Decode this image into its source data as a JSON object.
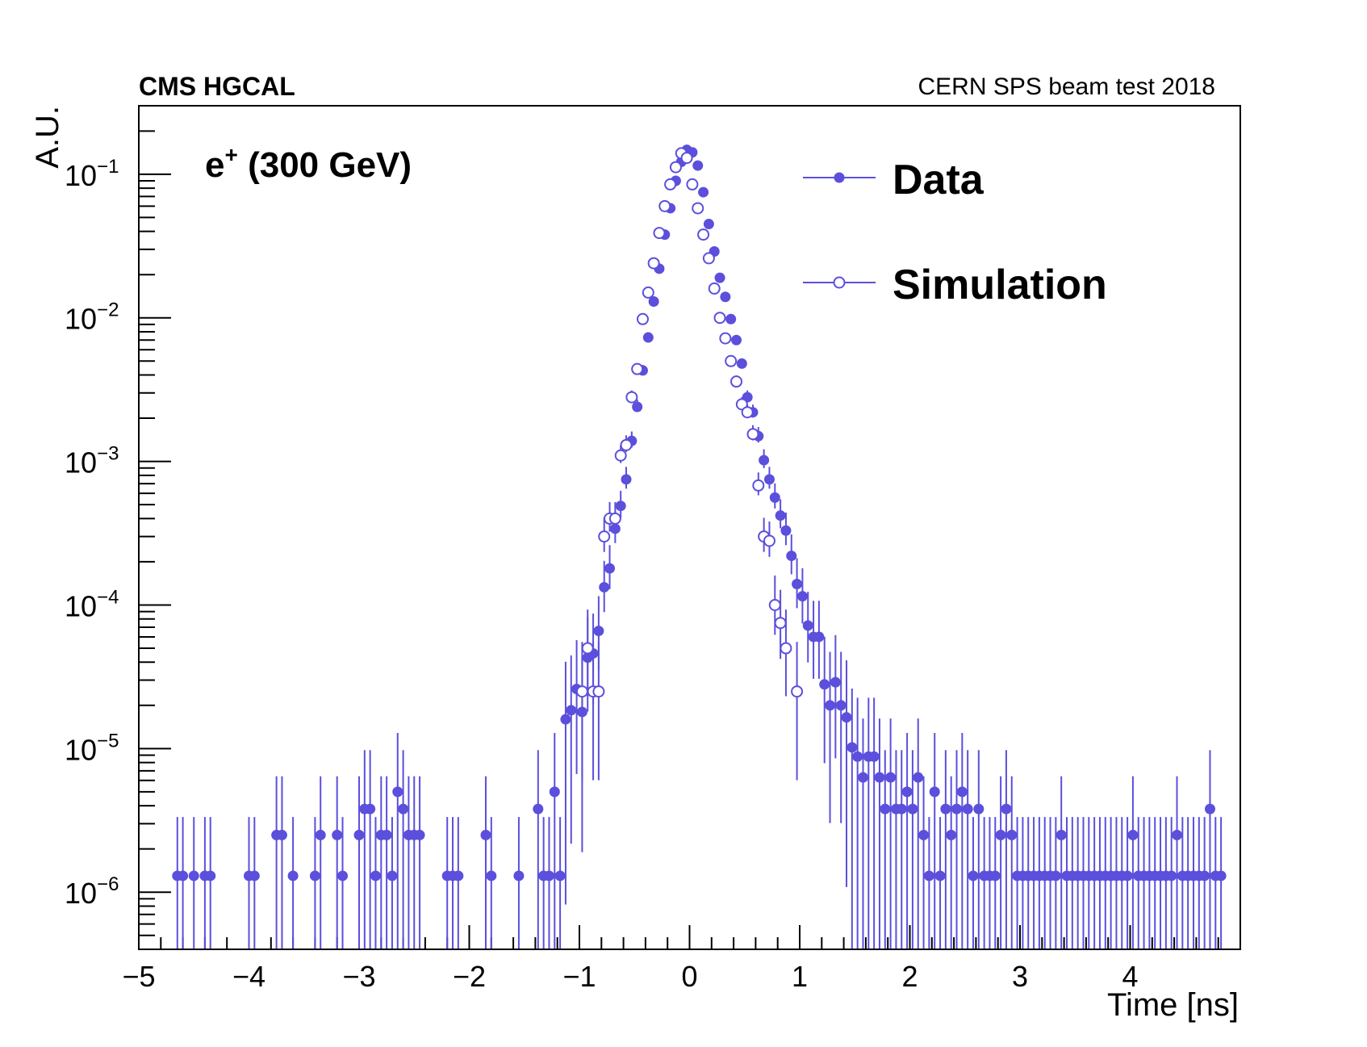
{
  "chart_data": {
    "type": "scatter",
    "title_left": "CMS HGCAL",
    "title_right": "CERN SPS beam test 2018",
    "annotation": "e+ (300 GeV)",
    "annotation_main": "e",
    "annotation_sup": "+",
    "annotation_rest": " (300 GeV)",
    "xlabel": "Time [ns]",
    "ylabel": "A.U.",
    "xlim": [
      -5,
      5
    ],
    "ylim": [
      4e-07,
      0.3
    ],
    "yscale": "log",
    "x_ticks": [
      -5,
      -4,
      -3,
      -2,
      -1,
      0,
      1,
      2,
      3,
      4
    ],
    "x_tick_labels": [
      "−5",
      "−4",
      "−3",
      "−2",
      "−1",
      "0",
      "1",
      "2",
      "3",
      "4"
    ],
    "y_tick_labels": [
      {
        "base": "10",
        "exp": "−6",
        "value": 1e-06
      },
      {
        "base": "10",
        "exp": "−5",
        "value": 1e-05
      },
      {
        "base": "10",
        "exp": "−4",
        "value": 0.0001
      },
      {
        "base": "10",
        "exp": "−3",
        "value": 0.001
      },
      {
        "base": "10",
        "exp": "−2",
        "value": 0.01
      },
      {
        "base": "10",
        "exp": "−1",
        "value": 0.1
      }
    ],
    "legend_position": "top-right",
    "color": "#5b4fdc",
    "series": [
      {
        "name": "Data",
        "marker": "filled-circle",
        "x": [
          -4.65,
          -4.6,
          -4.5,
          -4.4,
          -4.35,
          -4.0,
          -3.95,
          -3.75,
          -3.7,
          -3.6,
          -3.4,
          -3.35,
          -3.2,
          -3.15,
          -3.0,
          -2.95,
          -2.9,
          -2.85,
          -2.8,
          -2.75,
          -2.7,
          -2.65,
          -2.6,
          -2.55,
          -2.5,
          -2.45,
          -2.2,
          -2.15,
          -2.1,
          -1.85,
          -1.8,
          -1.55,
          -1.375,
          -1.325,
          -1.275,
          -1.225,
          -1.175,
          -1.125,
          -1.075,
          -1.025,
          -0.975,
          -0.925,
          -0.875,
          -0.825,
          -0.775,
          -0.725,
          -0.675,
          -0.625,
          -0.575,
          -0.525,
          -0.475,
          -0.425,
          -0.375,
          -0.325,
          -0.275,
          -0.225,
          -0.175,
          -0.125,
          -0.075,
          -0.025,
          0.025,
          0.075,
          0.125,
          0.175,
          0.225,
          0.275,
          0.325,
          0.375,
          0.425,
          0.475,
          0.525,
          0.575,
          0.625,
          0.675,
          0.725,
          0.775,
          0.825,
          0.875,
          0.925,
          0.975,
          1.025,
          1.075,
          1.125,
          1.175,
          1.225,
          1.275,
          1.325,
          1.375,
          1.425,
          1.475,
          1.525,
          1.575,
          1.625,
          1.675,
          1.725,
          1.775,
          1.825,
          1.875,
          1.925,
          1.975,
          2.025,
          2.075,
          2.125,
          2.175,
          2.225,
          2.275,
          2.325,
          2.375,
          2.425,
          2.475,
          2.525,
          2.575,
          2.625,
          2.675,
          2.725,
          2.775,
          2.825,
          2.875,
          2.925,
          2.975,
          3.025,
          3.075,
          3.125,
          3.175,
          3.225,
          3.275,
          3.325,
          3.375,
          3.425,
          3.475,
          3.525,
          3.575,
          3.625,
          3.675,
          3.725,
          3.775,
          3.825,
          3.875,
          3.925,
          3.975,
          4.025,
          4.075,
          4.125,
          4.175,
          4.225,
          4.275,
          4.325,
          4.375,
          4.425,
          4.475,
          4.525,
          4.575,
          4.625,
          4.675,
          4.725,
          4.775,
          4.825
        ],
        "y": [
          1.3e-06,
          1.3e-06,
          1.3e-06,
          1.3e-06,
          1.3e-06,
          1.3e-06,
          1.3e-06,
          2.5e-06,
          2.5e-06,
          1.3e-06,
          1.3e-06,
          2.5e-06,
          2.5e-06,
          1.3e-06,
          2.5e-06,
          3.8e-06,
          3.8e-06,
          1.3e-06,
          2.5e-06,
          2.5e-06,
          1.3e-06,
          5e-06,
          3.8e-06,
          2.5e-06,
          2.5e-06,
          2.5e-06,
          1.3e-06,
          1.3e-06,
          1.3e-06,
          2.5e-06,
          1.3e-06,
          1.3e-06,
          3.8e-06,
          1.3e-06,
          1.3e-06,
          5e-06,
          1.3e-06,
          1.6e-05,
          1.85e-05,
          2.6e-05,
          1.8e-05,
          4.3e-05,
          4.6e-05,
          6.6e-05,
          0.000133,
          0.00018,
          0.00034,
          0.00049,
          0.00075,
          0.00139,
          0.0024,
          0.0043,
          0.0073,
          0.013,
          0.022,
          0.038,
          0.058,
          0.09,
          0.122,
          0.148,
          0.142,
          0.115,
          0.075,
          0.045,
          0.029,
          0.019,
          0.014,
          0.0098,
          0.007,
          0.0048,
          0.0028,
          0.0022,
          0.0015,
          0.00102,
          0.00075,
          0.00056,
          0.00042,
          0.00033,
          0.00022,
          0.00014,
          0.000115,
          7.2e-05,
          6e-05,
          6e-05,
          2.8e-05,
          2e-05,
          2.9e-05,
          2e-05,
          1.65e-05,
          1.02e-05,
          8.8e-06,
          6.3e-06,
          8.8e-06,
          8.8e-06,
          6.3e-06,
          3.8e-06,
          6.3e-06,
          3.8e-06,
          3.8e-06,
          5e-06,
          3.8e-06,
          6.3e-06,
          2.5e-06,
          1.3e-06,
          5e-06,
          1.3e-06,
          3.8e-06,
          2.5e-06,
          3.8e-06,
          5e-06,
          3.8e-06,
          1.3e-06,
          3.8e-06,
          1.3e-06,
          1.3e-06,
          1.3e-06,
          2.5e-06,
          3.8e-06,
          2.5e-06,
          1.3e-06,
          1.3e-06,
          1.3e-06,
          1.3e-06,
          1.3e-06,
          1.3e-06,
          1.3e-06,
          1.3e-06,
          2.5e-06,
          1.3e-06,
          1.3e-06,
          1.3e-06,
          1.3e-06,
          1.3e-06,
          1.3e-06,
          1.3e-06,
          1.3e-06,
          1.3e-06,
          1.3e-06,
          1.3e-06,
          1.3e-06,
          2.5e-06,
          1.3e-06,
          1.3e-06,
          1.3e-06,
          1.3e-06,
          1.3e-06,
          1.3e-06,
          1.3e-06,
          2.5e-06,
          1.3e-06,
          1.3e-06,
          1.3e-06,
          1.3e-06,
          1.3e-06,
          3.8e-06,
          1.3e-06,
          1.3e-06
        ]
      },
      {
        "name": "Simulation",
        "marker": "open-circle",
        "x": [
          -0.975,
          -0.925,
          -0.875,
          -0.825,
          -0.775,
          -0.725,
          -0.675,
          -0.625,
          -0.575,
          -0.525,
          -0.475,
          -0.425,
          -0.375,
          -0.325,
          -0.275,
          -0.225,
          -0.175,
          -0.125,
          -0.075,
          -0.025,
          0.025,
          0.075,
          0.125,
          0.175,
          0.225,
          0.275,
          0.325,
          0.375,
          0.425,
          0.475,
          0.525,
          0.575,
          0.625,
          0.675,
          0.725,
          0.775,
          0.825,
          0.875,
          0.975
        ],
        "y": [
          2.5e-05,
          5e-05,
          2.5e-05,
          2.5e-05,
          0.0003,
          0.0004,
          0.0004,
          0.0011,
          0.0013,
          0.0028,
          0.0044,
          0.0098,
          0.015,
          0.024,
          0.039,
          0.06,
          0.085,
          0.112,
          0.14,
          0.13,
          0.085,
          0.058,
          0.038,
          0.026,
          0.016,
          0.01,
          0.0072,
          0.005,
          0.0036,
          0.0025,
          0.0022,
          0.00155,
          0.00068,
          0.0003,
          0.00028,
          0.0001,
          7.5e-05,
          5e-05,
          2.5e-05
        ]
      }
    ]
  }
}
